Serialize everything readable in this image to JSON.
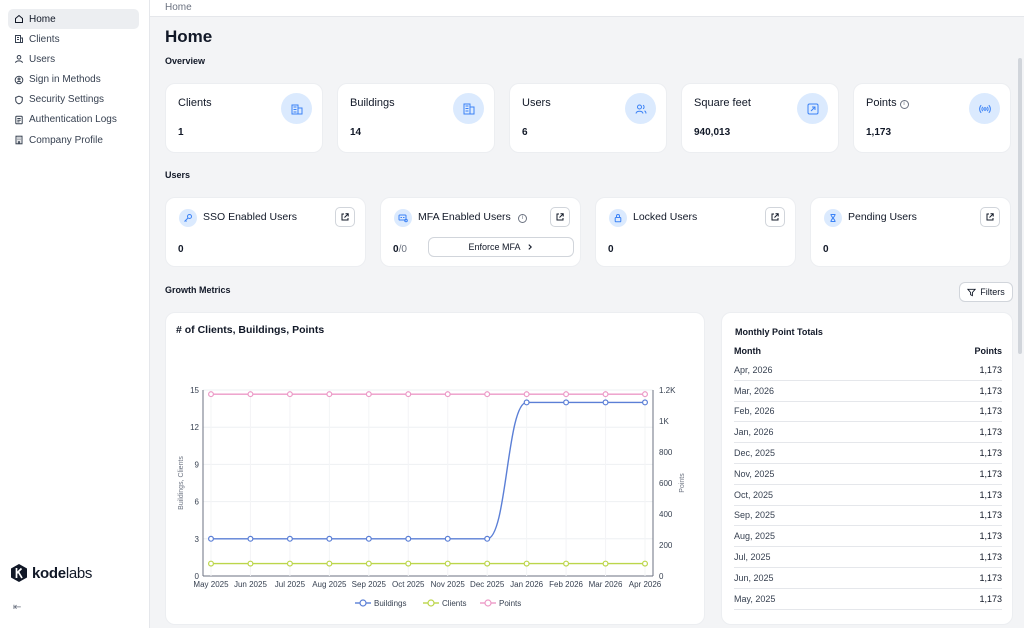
{
  "sidebar": {
    "items": [
      {
        "label": "Home",
        "icon": "home-icon"
      },
      {
        "label": "Clients",
        "icon": "building-icon"
      },
      {
        "label": "Users",
        "icon": "user-icon"
      },
      {
        "label": "Sign in Methods",
        "icon": "key-circle-icon"
      },
      {
        "label": "Security Settings",
        "icon": "shield-icon"
      },
      {
        "label": "Authentication Logs",
        "icon": "log-icon"
      },
      {
        "label": "Company Profile",
        "icon": "company-icon"
      }
    ],
    "logo": {
      "bold": "kode",
      "thin": "labs"
    },
    "collapse_icon": "⇤"
  },
  "breadcrumb": "Home",
  "page_title": "Home",
  "overview": {
    "label": "Overview",
    "cards": [
      {
        "title": "Clients",
        "value": "1",
        "icon": "building-icon"
      },
      {
        "title": "Buildings",
        "value": "14",
        "icon": "buildings-icon"
      },
      {
        "title": "Users",
        "value": "6",
        "icon": "users-icon"
      },
      {
        "title": "Square feet",
        "value": "940,013",
        "icon": "expand-icon"
      },
      {
        "title": "Points",
        "value": "1,173",
        "icon": "signal-icon"
      }
    ]
  },
  "users_section": {
    "label": "Users",
    "cards": [
      {
        "title": "SSO Enabled Users",
        "value": "0",
        "icon": "key-icon"
      },
      {
        "title": "MFA Enabled Users",
        "value": "0",
        "sub": "/0",
        "icon": "mfa-icon",
        "button": "Enforce MFA"
      },
      {
        "title": "Locked Users",
        "value": "0",
        "icon": "lock-icon"
      },
      {
        "title": "Pending Users",
        "value": "0",
        "icon": "hourglass-icon"
      }
    ]
  },
  "growth": {
    "label": "Growth Metrics",
    "filters_label": "Filters"
  },
  "chart_data": {
    "type": "line",
    "title": "# of Clients, Buildings, Points",
    "x": [
      "May 2025",
      "Jun 2025",
      "Jul 2025",
      "Aug 2025",
      "Sep 2025",
      "Oct 2025",
      "Nov 2025",
      "Dec 2025",
      "Jan 2026",
      "Feb 2026",
      "Mar 2026",
      "Apr 2026"
    ],
    "left_axis": {
      "label": "Buildings, Clients",
      "ticks": [
        "0",
        "3",
        "6",
        "9",
        "12",
        "15"
      ],
      "range": [
        0,
        15
      ]
    },
    "right_axis": {
      "label": "Points",
      "ticks": [
        "0",
        "200",
        "400",
        "600",
        "800",
        "1K",
        "1.2K"
      ],
      "range": [
        0,
        1200
      ]
    },
    "series": [
      {
        "name": "Buildings",
        "axis": "left",
        "color": "#5b7fd6",
        "values": [
          3,
          3,
          3,
          3,
          3,
          3,
          3,
          3,
          14,
          14,
          14,
          14
        ]
      },
      {
        "name": "Clients",
        "axis": "left",
        "color": "#bcd64a",
        "values": [
          1,
          1,
          1,
          1,
          1,
          1,
          1,
          1,
          1,
          1,
          1,
          1
        ]
      },
      {
        "name": "Points",
        "axis": "right",
        "color": "#ec9ac7",
        "values": [
          1173,
          1173,
          1173,
          1173,
          1173,
          1173,
          1173,
          1173,
          1173,
          1173,
          1173,
          1173
        ]
      }
    ],
    "legend": "bottom",
    "grid": true
  },
  "monthly_table": {
    "title": "Monthly Point Totals",
    "headers": [
      "Month",
      "Points"
    ],
    "rows": [
      [
        "Apr, 2026",
        "1,173"
      ],
      [
        "Mar, 2026",
        "1,173"
      ],
      [
        "Feb, 2026",
        "1,173"
      ],
      [
        "Jan, 2026",
        "1,173"
      ],
      [
        "Dec, 2025",
        "1,173"
      ],
      [
        "Nov, 2025",
        "1,173"
      ],
      [
        "Oct, 2025",
        "1,173"
      ],
      [
        "Sep, 2025",
        "1,173"
      ],
      [
        "Aug, 2025",
        "1,173"
      ],
      [
        "Jul, 2025",
        "1,173"
      ],
      [
        "Jun, 2025",
        "1,173"
      ],
      [
        "May, 2025",
        "1,173"
      ]
    ]
  }
}
